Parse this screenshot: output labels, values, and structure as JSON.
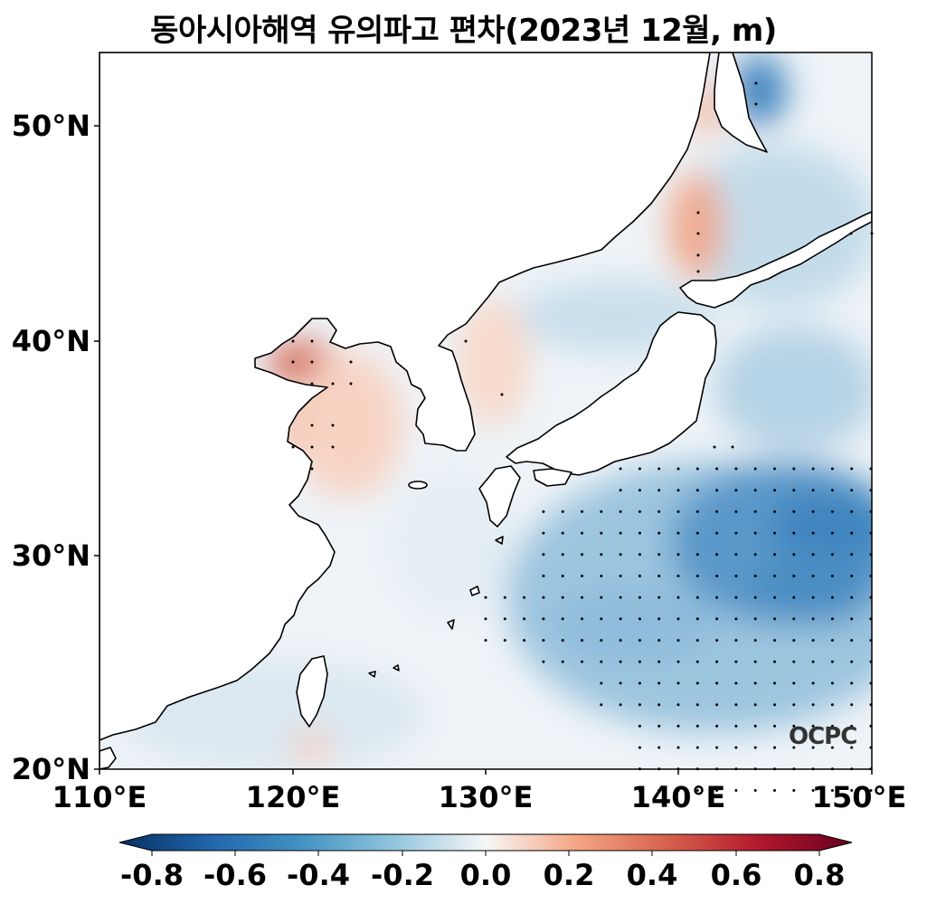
{
  "title": "동아시아해역 유의파고 편차(2023년 12월, m)",
  "watermark": "OCPC",
  "map": {
    "lon_range": [
      110,
      150
    ],
    "lat_range": [
      20,
      53.5
    ],
    "lat_ticks": [
      "20°N",
      "30°N",
      "40°N",
      "50°N"
    ],
    "lon_ticks": [
      "110°E",
      "120°E",
      "130°E",
      "140°E",
      "150°E"
    ]
  },
  "colorbar": {
    "ticks": [
      "-0.8",
      "-0.6",
      "-0.4",
      "-0.2",
      "0.0",
      "0.2",
      "0.4",
      "0.6",
      "0.8"
    ],
    "colors": {
      "neg_strong": "#053061",
      "neg_mid": "#2f79b5",
      "neg_light": "#a6cfe3",
      "neutral": "#f7f6f6",
      "pos_light": "#f8c0a4",
      "pos_mid": "#d6604d",
      "pos_strong": "#67001f"
    }
  }
}
